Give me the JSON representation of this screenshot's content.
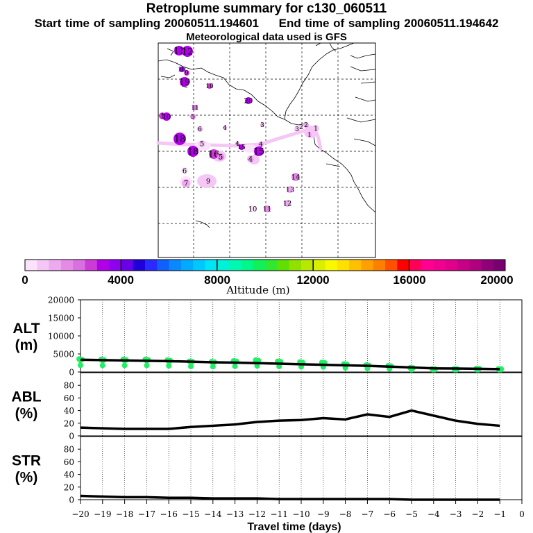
{
  "header": {
    "title": "Retroplume summary for c130_060511",
    "start_label": "Start time of sampling 20060511.194601",
    "end_label": "End time of sampling 20060511.194642",
    "met_label": "Meteorological data used is GFS"
  },
  "colorbar": {
    "xlabel": "Altitude (m)",
    "tick_labels": [
      "0",
      "4000",
      "8000",
      "12000",
      "16000",
      "20000"
    ],
    "colors": [
      "#fbe3fb",
      "#f6c6f6",
      "#eeaaee",
      "#e58be5",
      "#d970e0",
      "#cc3ad8",
      "#b000e8",
      "#9000f0",
      "#6a00e8",
      "#2000d8",
      "#2a2aff",
      "#1060ff",
      "#0a88ff",
      "#00aaff",
      "#00c8ff",
      "#00e4f8",
      "#00f0d8",
      "#00f8b0",
      "#00f888",
      "#10f058",
      "#30e830",
      "#60e000",
      "#90e000",
      "#b8e800",
      "#d8f000",
      "#f8f800",
      "#ffe000",
      "#ffc000",
      "#ffa000",
      "#ff8000",
      "#ff5000",
      "#ff0000",
      "#ff0058",
      "#ff0090",
      "#f00090",
      "#e0008c",
      "#c80088",
      "#b00080",
      "#900078",
      "#780070"
    ]
  },
  "map_labels": [
    {
      "t": "11",
      "c": "#b000e8"
    },
    {
      "t": "12",
      "c": "#b000e8"
    },
    {
      "t": "10",
      "c": "#9000f0"
    },
    {
      "t": "9",
      "c": "#cc3ad8"
    },
    {
      "t": "19",
      "c": "#b000e8"
    },
    {
      "t": "10",
      "c": "#cc3ad8"
    },
    {
      "t": "11",
      "c": "#d970e0"
    },
    {
      "t": "20",
      "c": "#b000e8"
    },
    {
      "t": "1",
      "c": "#cc3ad8"
    },
    {
      "t": "10",
      "c": "#b000e8"
    },
    {
      "t": "5",
      "c": "#e58be5"
    },
    {
      "t": "6",
      "c": "#eeaaee"
    },
    {
      "t": "4",
      "c": "#eeaaee"
    },
    {
      "t": "18",
      "c": "#b000e8"
    },
    {
      "t": "5",
      "c": "#f6c6f6"
    },
    {
      "t": "4",
      "c": "#eeaaee"
    },
    {
      "t": "3",
      "c": "#eeaaee"
    },
    {
      "t": "18",
      "c": "#b000e8"
    },
    {
      "t": "16",
      "c": "#cc3ad8"
    },
    {
      "t": "15",
      "c": "#b000e8"
    },
    {
      "t": "4",
      "c": "#eeaaee"
    },
    {
      "t": "15",
      "c": "#b000e8"
    },
    {
      "t": "5",
      "c": "#e58be5"
    },
    {
      "t": "6",
      "c": "#fbe3fb"
    },
    {
      "t": "7",
      "c": "#eeaaee"
    },
    {
      "t": "9",
      "c": "#f6c6f6"
    },
    {
      "t": "14",
      "c": "#e58be5"
    },
    {
      "t": "13",
      "c": "#eeaaee"
    },
    {
      "t": "12",
      "c": "#eeaaee"
    },
    {
      "t": "10",
      "c": "#fbe3fb"
    },
    {
      "t": "11",
      "c": "#e58be5"
    },
    {
      "t": "4",
      "c": "#eeaaee"
    },
    {
      "t": "3",
      "c": "#f6c6f6"
    },
    {
      "t": "2",
      "c": "#eeaaee"
    },
    {
      "t": "2",
      "c": "#f6c6f6"
    },
    {
      "t": "1",
      "c": "#f6c6f6"
    },
    {
      "t": "1",
      "c": "#eeaaee"
    }
  ],
  "chart_data": [
    {
      "type": "scatter",
      "name": "ALT",
      "ylabel": "ALT (m)",
      "ylabel_lines": [
        "ALT",
        "(m)"
      ],
      "ylim": [
        0,
        20000
      ],
      "yticks": [
        0,
        5000,
        10000,
        15000,
        20000
      ],
      "xlim": [
        -20,
        0
      ],
      "x": [
        -20,
        -19,
        -18,
        -17,
        -16,
        -15,
        -14,
        -13,
        -12,
        -11,
        -10,
        -9,
        -8,
        -7,
        -6,
        -5,
        -4,
        -3,
        -2,
        -1
      ],
      "points_y": [
        3400,
        3300,
        3300,
        3300,
        3100,
        2800,
        2700,
        2900,
        3100,
        2800,
        2600,
        2500,
        2100,
        1800,
        1600,
        1100,
        800,
        800,
        900,
        800
      ],
      "mean_y": [
        3400,
        3300,
        3200,
        3100,
        3000,
        2850,
        2700,
        2600,
        2450,
        2300,
        2150,
        2000,
        1850,
        1700,
        1500,
        1250,
        1000,
        950,
        900,
        800
      ],
      "points_color": "#22ee66",
      "line_color": "#000000"
    },
    {
      "type": "line",
      "name": "ABL",
      "ylabel": "ABL (%)",
      "ylabel_lines": [
        "ABL",
        "(%)"
      ],
      "ylim": [
        0,
        100
      ],
      "yticks": [
        0,
        20,
        40,
        60,
        80
      ],
      "xlim": [
        -20,
        0
      ],
      "x": [
        -20,
        -19,
        -18,
        -17,
        -16,
        -15,
        -14,
        -13,
        -12,
        -11,
        -10,
        -9,
        -8,
        -7,
        -6,
        -5,
        -4,
        -3,
        -2,
        -1
      ],
      "values": [
        13,
        12,
        11,
        11,
        11,
        14,
        16,
        18,
        22,
        24,
        25,
        28,
        26,
        34,
        30,
        40,
        32,
        24,
        19,
        16
      ]
    },
    {
      "type": "line",
      "name": "STR",
      "ylabel": "STR (%)",
      "ylabel_lines": [
        "STR",
        "(%)"
      ],
      "ylim": [
        0,
        100
      ],
      "yticks": [
        0,
        20,
        40,
        60,
        80
      ],
      "xlim": [
        -20,
        0
      ],
      "x": [
        -20,
        -19,
        -18,
        -17,
        -16,
        -15,
        -14,
        -13,
        -12,
        -11,
        -10,
        -9,
        -8,
        -7,
        -6,
        -5,
        -4,
        -3,
        -2,
        -1
      ],
      "values": [
        6,
        5,
        4,
        4,
        3,
        3,
        2,
        2,
        2,
        1,
        1,
        1,
        1,
        1,
        1,
        0,
        0,
        0,
        0,
        0
      ]
    }
  ],
  "xaxis": {
    "xlabel": "Travel time (days)",
    "tick_labels": [
      "−20",
      "−19",
      "−18",
      "−17",
      "−16",
      "−15",
      "−14",
      "−13",
      "−12",
      "−11",
      "−10",
      "−9",
      "−8",
      "−7",
      "−6",
      "−5",
      "−4",
      "−3",
      "−2",
      "−1",
      "0"
    ]
  }
}
